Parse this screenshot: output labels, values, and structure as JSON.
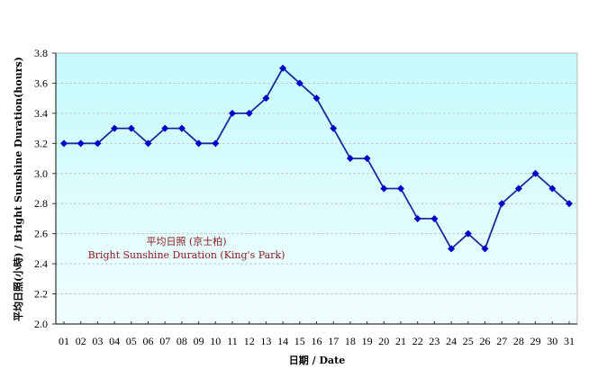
{
  "chart_data": {
    "type": "line",
    "title": "",
    "xlabel": "日期 / Date",
    "ylabel": "平均日照(小時) / Bright Sunshine Duration(hours)",
    "ylim": [
      2.0,
      3.8
    ],
    "yticks": [
      2.0,
      2.2,
      2.4,
      2.6,
      2.8,
      3.0,
      3.2,
      3.4,
      3.6,
      3.8
    ],
    "ytick_labels": [
      "2.0",
      "2.2",
      "2.4",
      "2.6",
      "2.8",
      "3.0",
      "3.2",
      "3.4",
      "3.6",
      "3.8"
    ],
    "categories": [
      "01",
      "02",
      "03",
      "04",
      "05",
      "06",
      "07",
      "08",
      "09",
      "10",
      "11",
      "12",
      "13",
      "14",
      "15",
      "16",
      "17",
      "18",
      "19",
      "20",
      "21",
      "22",
      "23",
      "24",
      "25",
      "26",
      "27",
      "28",
      "29",
      "30",
      "31"
    ],
    "series": [
      {
        "name": "Bright Sunshine Duration (King's Park)",
        "values": [
          3.2,
          3.2,
          3.2,
          3.3,
          3.3,
          3.2,
          3.3,
          3.3,
          3.2,
          3.2,
          3.4,
          3.4,
          3.5,
          3.7,
          3.6,
          3.5,
          3.3,
          3.1,
          3.1,
          2.9,
          2.9,
          2.7,
          2.7,
          2.5,
          2.6,
          2.5,
          2.8,
          2.9,
          3.0,
          2.9,
          2.8
        ],
        "color": "#0000cc",
        "line_color": "#1a2a9a",
        "marker": "diamond"
      }
    ],
    "annotation": {
      "line1": "平均日照 (京士柏)",
      "line2": "Bright Sunshine Duration (King's Park)",
      "color": "#8b1a1a"
    },
    "grid": true,
    "legend_position": "inside-lower-left",
    "background_gradient": [
      "#c4fafc",
      "#f2fefe"
    ]
  }
}
